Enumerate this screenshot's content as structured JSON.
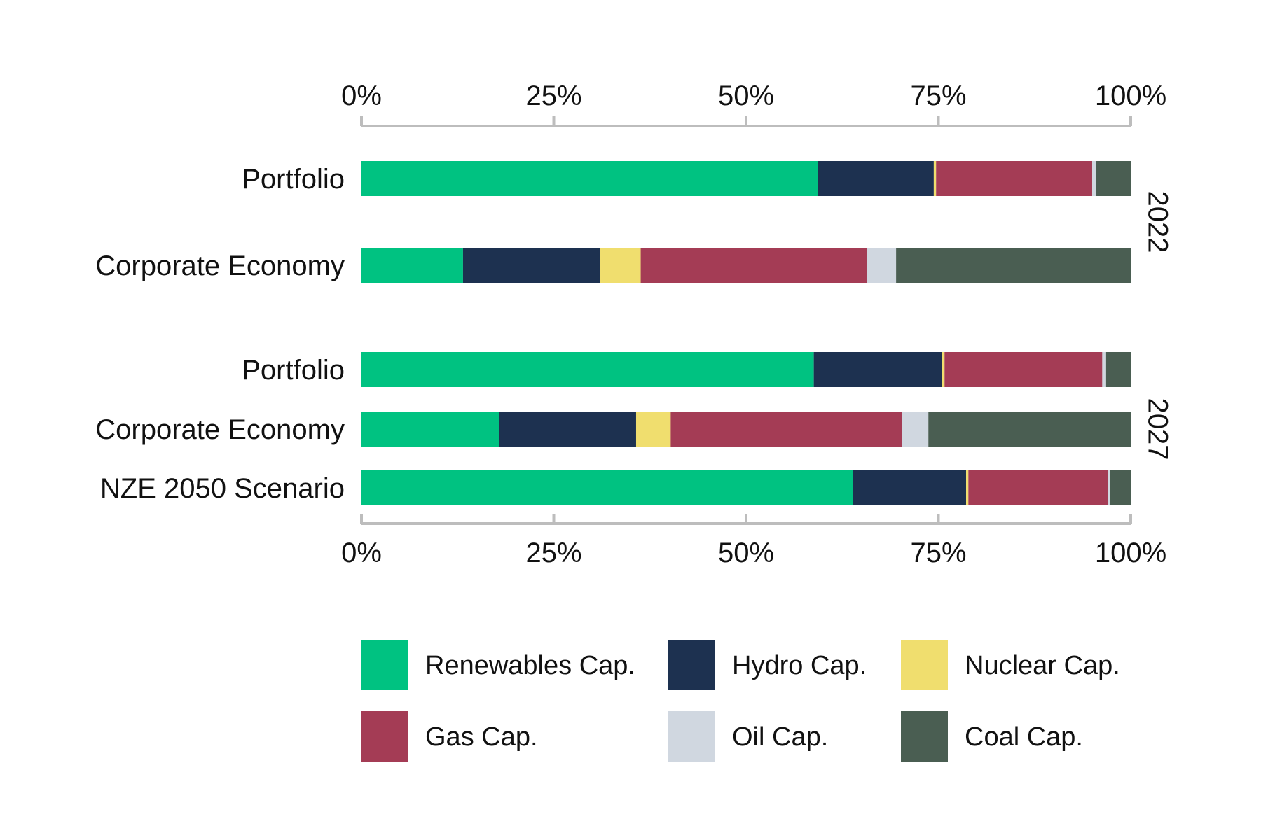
{
  "chart_data": {
    "type": "bar",
    "orientation": "horizontal",
    "stacked": true,
    "normalized": true,
    "xlim": [
      0,
      100
    ],
    "x_ticks": [
      "0%",
      "25%",
      "50%",
      "75%",
      "100%"
    ],
    "x_tick_values": [
      0,
      25,
      50,
      75,
      100
    ],
    "axis_top": true,
    "axis_bottom": true,
    "grid": false,
    "legend_position": "bottom",
    "series": [
      {
        "name": "Renewables Cap.",
        "color": "#00c281"
      },
      {
        "name": "Hydro Cap.",
        "color": "#1d3150"
      },
      {
        "name": "Nuclear Cap.",
        "color": "#f0de6e"
      },
      {
        "name": "Gas Cap.",
        "color": "#a43c55"
      },
      {
        "name": "Oil Cap.",
        "color": "#d0d7e0"
      },
      {
        "name": "Coal Cap.",
        "color": "#4a5e52"
      }
    ],
    "groups": [
      {
        "label": "2022",
        "rows": [
          {
            "label": "Portfolio",
            "values": [
              59.3,
              15.1,
              0.3,
              20.3,
              0.5,
              4.5
            ]
          },
          {
            "label": "Corporate Economy",
            "values": [
              13.2,
              17.8,
              5.3,
              29.4,
              3.8,
              30.5
            ]
          }
        ]
      },
      {
        "label": "2027",
        "rows": [
          {
            "label": "Portfolio",
            "values": [
              58.8,
              16.7,
              0.3,
              20.5,
              0.5,
              3.2
            ]
          },
          {
            "label": "Corporate Economy",
            "values": [
              17.9,
              17.8,
              4.5,
              30.1,
              3.4,
              26.3
            ]
          },
          {
            "label": "NZE 2050 Scenario",
            "values": [
              63.9,
              14.7,
              0.3,
              18.1,
              0.3,
              2.7
            ]
          }
        ]
      }
    ]
  }
}
